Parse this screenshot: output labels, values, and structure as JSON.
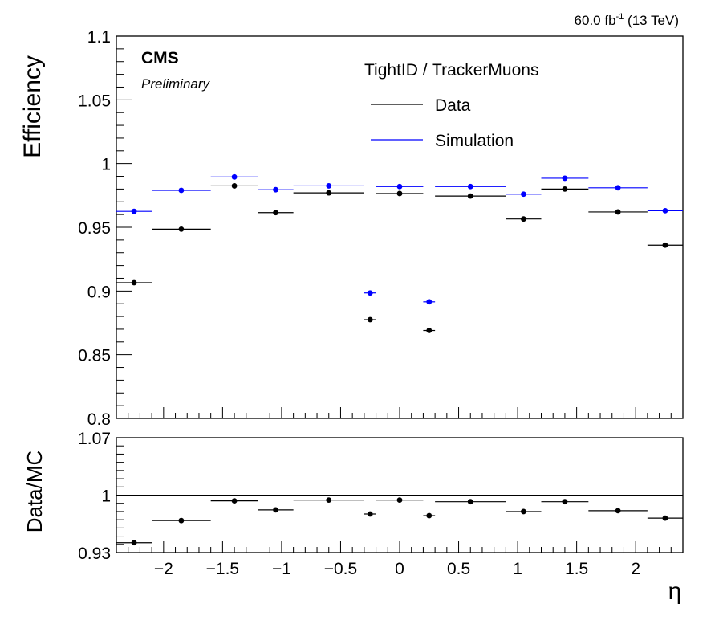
{
  "header": {
    "lumi_prefix": "60.0 fb",
    "lumi_sup": "-1",
    "lumi_suffix": " (13 TeV)"
  },
  "labels": {
    "experiment": "CMS",
    "status": "Preliminary",
    "legend_title": "TightID / TrackerMuons"
  },
  "colors": {
    "data": "#000000",
    "simulation": "#0000ff",
    "axis": "#000000"
  },
  "chart_data": [
    {
      "type": "scatter",
      "title": "",
      "ylabel": "Efficiency",
      "ylim": [
        0.8,
        1.1
      ],
      "yticks": [
        "0.8",
        "0.85",
        "0.9",
        "0.95",
        "1",
        "1.05",
        "1.1"
      ],
      "xlim": [
        -2.4,
        2.4
      ],
      "bins": [
        [
          -2.4,
          -2.1
        ],
        [
          -2.1,
          -1.6
        ],
        [
          -1.6,
          -1.2
        ],
        [
          -1.2,
          -0.9
        ],
        [
          -0.9,
          -0.3
        ],
        [
          -0.3,
          -0.2
        ],
        [
          -0.2,
          0.2
        ],
        [
          0.2,
          0.3
        ],
        [
          0.3,
          0.9
        ],
        [
          0.9,
          1.2
        ],
        [
          1.2,
          1.6
        ],
        [
          1.6,
          2.1
        ],
        [
          2.1,
          2.4
        ]
      ],
      "x": [
        -2.25,
        -1.85,
        -1.4,
        -1.05,
        -0.6,
        -0.25,
        0,
        0.25,
        0.6,
        1.05,
        1.4,
        1.85,
        2.25
      ],
      "legend_placement": "top-right",
      "series": [
        {
          "name": "Data",
          "color": "#000000",
          "values": [
            0.9065,
            0.9485,
            0.9825,
            0.9615,
            0.977,
            0.8775,
            0.9765,
            0.869,
            0.9745,
            0.9565,
            0.98,
            0.962,
            0.936
          ]
        },
        {
          "name": "Simulation",
          "color": "#0000ff",
          "values": [
            0.9625,
            0.979,
            0.9895,
            0.9795,
            0.9825,
            0.8985,
            0.982,
            0.8915,
            0.982,
            0.976,
            0.9885,
            0.981,
            0.963
          ]
        }
      ]
    },
    {
      "type": "scatter",
      "title": "",
      "ylabel": "Data/MC",
      "xlabel": "η",
      "ylim": [
        0.93,
        1.07
      ],
      "yticks": [
        "0.93",
        "1",
        "1.07"
      ],
      "xlim": [
        -2.4,
        2.4
      ],
      "xticks": [
        "−2",
        "−1.5",
        "−1",
        "−0.5",
        "0",
        "0.5",
        "1",
        "1.5",
        "2"
      ],
      "reference_line": 1,
      "series": [
        {
          "values": [
            0.942,
            0.969,
            0.993,
            0.982,
            0.994,
            0.977,
            0.994,
            0.975,
            0.992,
            0.98,
            0.992,
            0.981,
            0.972
          ]
        }
      ]
    }
  ]
}
